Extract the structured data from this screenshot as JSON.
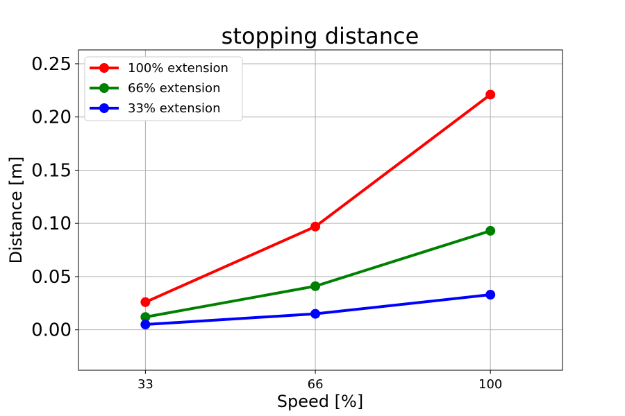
{
  "chart_data": {
    "type": "line",
    "title": "stopping distance",
    "xlabel": "Speed [%]",
    "ylabel": "Distance [m]",
    "categories": [
      "33",
      "66",
      "100"
    ],
    "x": [
      33,
      66,
      100
    ],
    "xlim": [
      20,
      114
    ],
    "ylim": [
      -0.038,
      0.263
    ],
    "yticks": [
      "0.00",
      "0.05",
      "0.10",
      "0.15",
      "0.20",
      "0.25"
    ],
    "ytick_values": [
      0.0,
      0.05,
      0.1,
      0.15,
      0.2,
      0.25
    ],
    "grid": true,
    "legend_position": "top-left",
    "series": [
      {
        "name": "100% extension",
        "color": "#ff0000",
        "values": [
          0.026,
          0.097,
          0.221
        ]
      },
      {
        "name": "66% extension",
        "color": "#008000",
        "values": [
          0.012,
          0.041,
          0.093
        ]
      },
      {
        "name": "33% extension",
        "color": "#0000ff",
        "values": [
          0.005,
          0.015,
          0.033
        ]
      }
    ]
  }
}
